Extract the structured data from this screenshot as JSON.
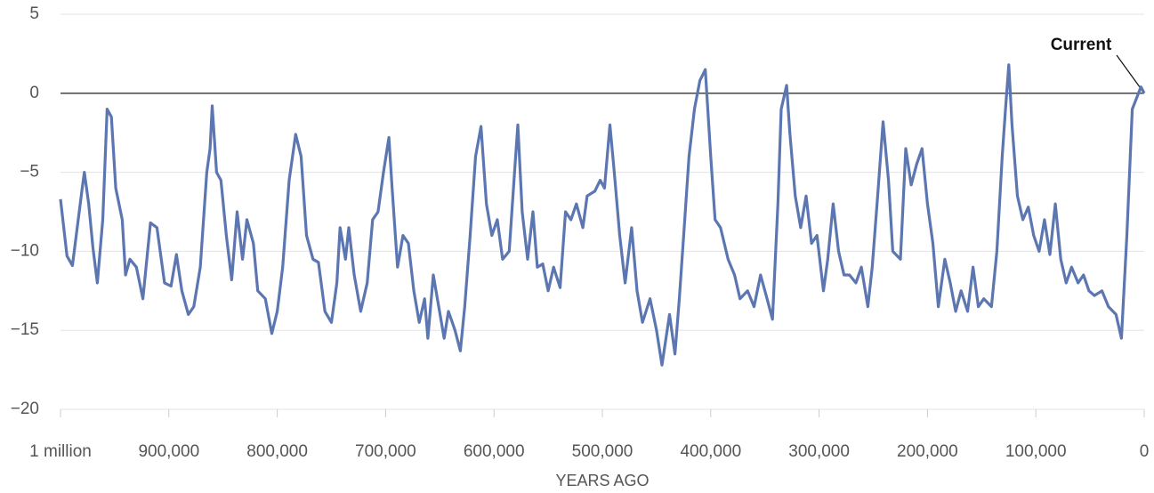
{
  "chart_data": {
    "type": "line",
    "x_label": "YEARS AGO",
    "annotation": "Current",
    "color": "#5b76b0",
    "grid": true,
    "xlim": [
      1000000,
      0
    ],
    "ylim": [
      -20,
      5
    ],
    "xticks": [
      {
        "value": 1000000,
        "label": "1 million"
      },
      {
        "value": 900000,
        "label": "900,000"
      },
      {
        "value": 800000,
        "label": "800,000"
      },
      {
        "value": 700000,
        "label": "700,000"
      },
      {
        "value": 600000,
        "label": "600,000"
      },
      {
        "value": 500000,
        "label": "500,000"
      },
      {
        "value": 400000,
        "label": "400,000"
      },
      {
        "value": 300000,
        "label": "300,000"
      },
      {
        "value": 200000,
        "label": "200,000"
      },
      {
        "value": 100000,
        "label": "100,000"
      },
      0
    ],
    "yticks": [
      5,
      0,
      {
        "value": -5,
        "label": "−5"
      },
      {
        "value": -10,
        "label": "−10"
      },
      {
        "value": -15,
        "label": "−15"
      },
      {
        "value": -20,
        "label": "−20"
      }
    ],
    "x": [
      1000000,
      994000,
      989000,
      980000,
      978000,
      974000,
      970000,
      966000,
      961000,
      957000,
      953000,
      949000,
      943000,
      940000,
      936000,
      930000,
      924000,
      917000,
      911000,
      904000,
      898000,
      893000,
      888000,
      882000,
      877000,
      871000,
      865000,
      862000,
      860000,
      856000,
      852000,
      847000,
      842000,
      837000,
      832000,
      828000,
      822000,
      818000,
      811000,
      805000,
      800000,
      795000,
      789000,
      783000,
      778000,
      773000,
      767000,
      762000,
      756000,
      750000,
      745000,
      742000,
      737000,
      734000,
      729000,
      723000,
      717000,
      712000,
      707000,
      702000,
      697000,
      694000,
      689000,
      684000,
      679000,
      674000,
      669000,
      664000,
      661000,
      656000,
      651000,
      646000,
      642000,
      636000,
      631000,
      627000,
      622000,
      617000,
      612000,
      607000,
      602000,
      597000,
      592000,
      586000,
      581000,
      578000,
      574000,
      569000,
      564000,
      560000,
      555000,
      550000,
      545000,
      539000,
      534000,
      529000,
      524000,
      518000,
      514000,
      507000,
      502000,
      498000,
      493000,
      489000,
      484000,
      479000,
      473000,
      468000,
      463000,
      456000,
      450000,
      445000,
      438000,
      433000,
      429000,
      424000,
      420000,
      415000,
      410000,
      405000,
      400000,
      396000,
      391000,
      384000,
      378000,
      373000,
      366000,
      360000,
      354000,
      348000,
      343000,
      338000,
      335000,
      330000,
      327000,
      322000,
      317000,
      312000,
      307000,
      302000,
      296000,
      292000,
      287000,
      282000,
      277000,
      272000,
      266000,
      261000,
      255000,
      251000,
      246000,
      241000,
      236000,
      232000,
      225000,
      220000,
      215000,
      210000,
      205000,
      200000,
      195000,
      190000,
      184000,
      179000,
      174000,
      169000,
      163000,
      158000,
      153000,
      148000,
      141000,
      136000,
      131000,
      128000,
      125000,
      122000,
      117000,
      112000,
      107000,
      102000,
      97000,
      92000,
      87000,
      82000,
      77000,
      72000,
      67000,
      61000,
      56000,
      51000,
      46000,
      39000,
      33000,
      26000,
      21000,
      16000,
      11000,
      7000,
      3000,
      0
    ],
    "values": [
      -6.7,
      -10.3,
      -10.9,
      -6,
      -5,
      -7,
      -9.8,
      -12,
      -8,
      -1,
      -1.5,
      -6,
      -8,
      -11.5,
      -10.5,
      -11,
      -13,
      -8.2,
      -8.5,
      -12,
      -12.2,
      -10.2,
      -12.5,
      -14,
      -13.5,
      -11,
      -5,
      -3.5,
      -0.8,
      -5,
      -5.5,
      -9,
      -11.8,
      -7.5,
      -10.5,
      -8,
      -9.5,
      -12.5,
      -13,
      -15.2,
      -13.8,
      -11,
      -5.5,
      -2.6,
      -4,
      -9,
      -10.5,
      -10.7,
      -13.8,
      -14.5,
      -12,
      -8.5,
      -10.5,
      -8.5,
      -11.5,
      -13.8,
      -12,
      -8,
      -7.5,
      -5,
      -2.8,
      -6,
      -11,
      -9,
      -9.5,
      -12.5,
      -14.5,
      -13,
      -15.5,
      -11.5,
      -13.5,
      -15.5,
      -13.8,
      -15,
      -16.3,
      -13.5,
      -9,
      -4,
      -2.1,
      -7,
      -9,
      -8,
      -10.5,
      -10,
      -5,
      -2,
      -7.5,
      -10.5,
      -7.5,
      -11,
      -10.8,
      -12.5,
      -11,
      -12.3,
      -7.5,
      -8,
      -7,
      -8.5,
      -6.5,
      -6.2,
      -5.5,
      -6,
      -2,
      -5,
      -9,
      -12,
      -8.5,
      -12.5,
      -14.5,
      -13,
      -15,
      -17.2,
      -14,
      -16.5,
      -13,
      -8,
      -4,
      -1,
      0.8,
      1.5,
      -4,
      -8,
      -8.5,
      -10.5,
      -11.5,
      -13,
      -12.5,
      -13.5,
      -11.5,
      -13,
      -14.3,
      -7,
      -1,
      0.5,
      -2.5,
      -6.5,
      -8.5,
      -6.5,
      -9.5,
      -9,
      -12.5,
      -10.5,
      -7,
      -10,
      -11.5,
      -11.5,
      -12,
      -11,
      -13.5,
      -11,
      -6.5,
      -1.8,
      -5.5,
      -10,
      -10.5,
      -3.5,
      -5.8,
      -4.5,
      -3.5,
      -7,
      -9.5,
      -13.5,
      -10.5,
      -12,
      -13.8,
      -12.5,
      -13.8,
      -11,
      -13.5,
      -13,
      -13.5,
      -10,
      -4,
      -1,
      1.8,
      -2,
      -6.5,
      -8,
      -7.2,
      -9,
      -10,
      -8,
      -10.2,
      -7,
      -10.5,
      -12,
      -11,
      -12,
      -11.5,
      -12.5,
      -12.8,
      -12.5,
      -13.5,
      -14,
      -15.5,
      -9,
      -1,
      -0.3,
      0.4,
      0
    ]
  }
}
